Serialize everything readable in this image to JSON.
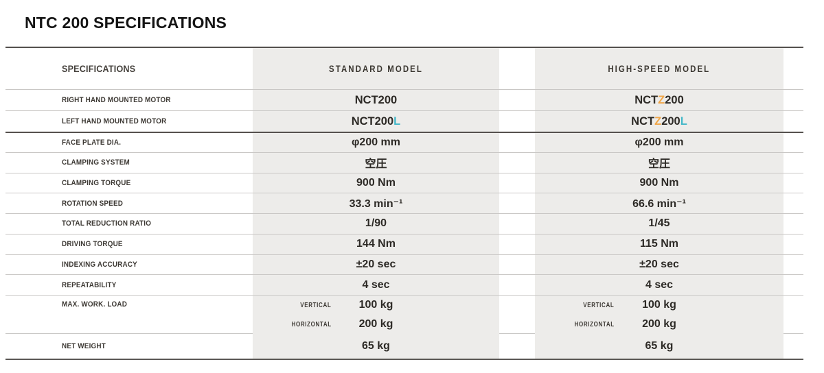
{
  "title": "NTC 200 SPECIFICATIONS",
  "colors": {
    "accent_orange": "#f0a648",
    "accent_cyan": "#43b7c8",
    "column_background": "#edecea"
  },
  "table": {
    "header": {
      "spec": "SPECIFICATIONS",
      "standard": "STANDARD MODEL",
      "high_speed": "HIGH-SPEED MODEL"
    },
    "motor_rows": [
      {
        "label": "RIGHT HAND MOUNTED MOTOR",
        "standard": {
          "pre": "NCT200"
        },
        "high_speed": {
          "pre": "NCT",
          "z": "Z",
          "post": "200"
        }
      },
      {
        "label": "LEFT HAND MOUNTED MOTOR",
        "standard": {
          "pre": "NCT200",
          "suffix": "L"
        },
        "high_speed": {
          "pre": "NCT",
          "z": "Z",
          "post": "200",
          "suffix": "L"
        }
      }
    ],
    "spec_rows": [
      {
        "label": "FACE PLATE DIA.",
        "standard": "φ200 mm",
        "high_speed": "φ200 mm"
      },
      {
        "label": "CLAMPING SYSTEM",
        "standard": "空圧",
        "high_speed": "空圧"
      },
      {
        "label": "CLAMPING TORQUE",
        "standard": "900 Nm",
        "high_speed": "900 Nm"
      },
      {
        "label": "ROTATION SPEED",
        "standard": "33.3 min⁻¹",
        "high_speed": "66.6 min⁻¹"
      },
      {
        "label": "TOTAL REDUCTION RATIO",
        "standard": "1/90",
        "high_speed": "1/45"
      },
      {
        "label": "DRIVING TORQUE",
        "standard": "144 Nm",
        "high_speed": "115 Nm"
      },
      {
        "label": "INDEXING ACCURACY",
        "standard": "±20 sec",
        "high_speed": "±20 sec"
      },
      {
        "label": "REPEATABILITY",
        "standard": "4 sec",
        "high_speed": "4 sec"
      }
    ],
    "work_load_row": {
      "label": "MAX. WORK. LOAD",
      "sub_rows": [
        {
          "label": "VERTICAL",
          "standard": "100 kg",
          "high_speed": "100 kg"
        },
        {
          "label": "HORIZONTAL",
          "standard": "200 kg",
          "high_speed": "200 kg"
        }
      ]
    },
    "net_weight_row": {
      "label": "NET WEIGHT",
      "standard": "65 kg",
      "high_speed": "65 kg"
    }
  }
}
